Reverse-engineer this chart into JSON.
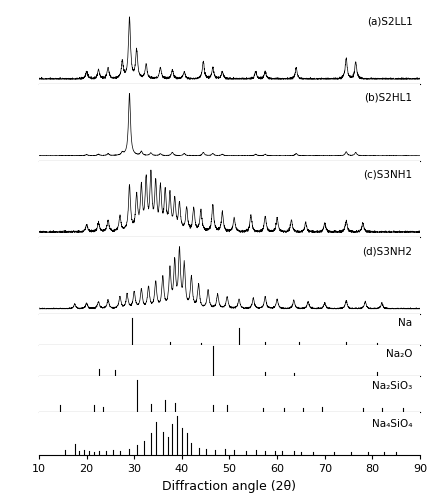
{
  "xlim": [
    10,
    90
  ],
  "xlabel": "Diffraction angle (2θ)",
  "labels": [
    "(a)S2LL1",
    "(b)S2HL1",
    "(c)S3NH1",
    "(d)S3NH2",
    "Na",
    "Na₂O",
    "Na₂SiO₃",
    "Na₄SiO₄"
  ],
  "background_color": "#ffffff",
  "line_color": "#000000",
  "panel_heights": [
    1.6,
    1.6,
    1.6,
    1.6,
    0.65,
    0.65,
    0.75,
    0.9
  ],
  "Na_peaks": [
    29.5,
    37.5,
    44.0,
    52.0,
    57.5,
    64.5,
    74.5,
    81.0
  ],
  "Na_heights": [
    0.85,
    0.08,
    0.05,
    0.55,
    0.08,
    0.08,
    0.08,
    0.05
  ],
  "Na2O_peaks": [
    22.5,
    26.0,
    46.5,
    57.5,
    63.5,
    81.0
  ],
  "Na2O_heights": [
    0.22,
    0.18,
    0.95,
    0.12,
    0.1,
    0.12
  ],
  "Na2SiO3_peaks": [
    14.5,
    21.5,
    23.5,
    30.5,
    33.5,
    36.5,
    38.5,
    46.5,
    49.5,
    57.0,
    61.5,
    65.5,
    69.5,
    78.0,
    82.0,
    86.5
  ],
  "Na2SiO3_heights": [
    0.2,
    0.18,
    0.15,
    0.88,
    0.22,
    0.32,
    0.25,
    0.2,
    0.18,
    0.12,
    0.1,
    0.1,
    0.15,
    0.12,
    0.1,
    0.1
  ],
  "Na4SiO4_peaks": [
    15.5,
    17.5,
    18.5,
    19.5,
    20.5,
    21.5,
    22.5,
    24.0,
    25.5,
    27.0,
    29.0,
    30.5,
    32.0,
    33.5,
    34.5,
    36.0,
    37.0,
    38.0,
    39.0,
    40.0,
    41.0,
    42.0,
    43.5,
    45.0,
    47.0,
    49.0,
    51.0,
    53.5,
    55.5,
    57.5,
    59.5,
    61.0,
    63.5,
    65.0,
    67.5,
    72.0,
    75.5,
    79.0,
    82.5,
    85.0
  ],
  "Na4SiO4_heights": [
    0.12,
    0.28,
    0.1,
    0.12,
    0.1,
    0.08,
    0.1,
    0.1,
    0.12,
    0.1,
    0.15,
    0.25,
    0.35,
    0.55,
    0.85,
    0.6,
    0.45,
    0.8,
    1.0,
    0.7,
    0.55,
    0.3,
    0.18,
    0.15,
    0.12,
    0.15,
    0.12,
    0.1,
    0.12,
    0.1,
    0.1,
    0.1,
    0.1,
    0.08,
    0.08,
    0.08,
    0.08,
    0.08,
    0.08,
    0.08
  ],
  "specA_peaks": [
    20.0,
    22.5,
    24.5,
    27.5,
    29.0,
    30.5,
    32.5,
    35.5,
    38.0,
    40.5,
    44.5,
    46.5,
    48.5,
    55.5,
    57.5,
    64.0,
    74.5,
    76.5
  ],
  "specA_amps": [
    0.08,
    0.1,
    0.12,
    0.18,
    0.65,
    0.3,
    0.15,
    0.12,
    0.1,
    0.08,
    0.18,
    0.12,
    0.08,
    0.08,
    0.08,
    0.12,
    0.22,
    0.18
  ],
  "specB_peaks": [
    20.0,
    22.5,
    24.5,
    27.5,
    29.0,
    31.5,
    33.5,
    35.5,
    38.0,
    40.5,
    44.5,
    46.5,
    48.5,
    55.5,
    57.5,
    64.0,
    74.5,
    76.5
  ],
  "specB_amps": [
    0.06,
    0.08,
    0.1,
    0.15,
    3.5,
    0.22,
    0.15,
    0.1,
    0.18,
    0.12,
    0.18,
    0.12,
    0.08,
    0.08,
    0.08,
    0.12,
    0.22,
    0.18
  ],
  "specC_peaks": [
    20.0,
    22.5,
    24.5,
    27.0,
    29.0,
    30.5,
    31.5,
    32.5,
    33.5,
    34.5,
    35.5,
    36.5,
    37.5,
    38.5,
    39.5,
    41.0,
    42.5,
    44.0,
    46.5,
    48.5,
    51.0,
    54.5,
    57.5,
    60.0,
    63.0,
    66.0,
    70.0,
    74.5,
    78.0
  ],
  "specC_amps": [
    0.1,
    0.12,
    0.15,
    0.2,
    0.6,
    0.45,
    0.55,
    0.65,
    0.7,
    0.6,
    0.55,
    0.5,
    0.45,
    0.4,
    0.35,
    0.3,
    0.3,
    0.28,
    0.35,
    0.25,
    0.18,
    0.22,
    0.2,
    0.18,
    0.15,
    0.12,
    0.12,
    0.15,
    0.12
  ],
  "specD_peaks": [
    17.5,
    20.0,
    22.5,
    24.5,
    27.0,
    28.5,
    30.0,
    31.5,
    33.0,
    34.5,
    36.0,
    37.5,
    38.5,
    39.5,
    40.5,
    42.0,
    43.5,
    45.5,
    47.5,
    49.5,
    52.0,
    55.0,
    57.5,
    60.0,
    63.5,
    66.5,
    70.0,
    74.5,
    78.5,
    82.0
  ],
  "specD_amps": [
    0.1,
    0.12,
    0.15,
    0.18,
    0.25,
    0.3,
    0.35,
    0.4,
    0.45,
    0.55,
    0.65,
    0.8,
    0.95,
    1.2,
    0.9,
    0.65,
    0.5,
    0.38,
    0.3,
    0.25,
    0.2,
    0.22,
    0.25,
    0.2,
    0.18,
    0.15,
    0.12,
    0.18,
    0.15,
    0.12
  ]
}
